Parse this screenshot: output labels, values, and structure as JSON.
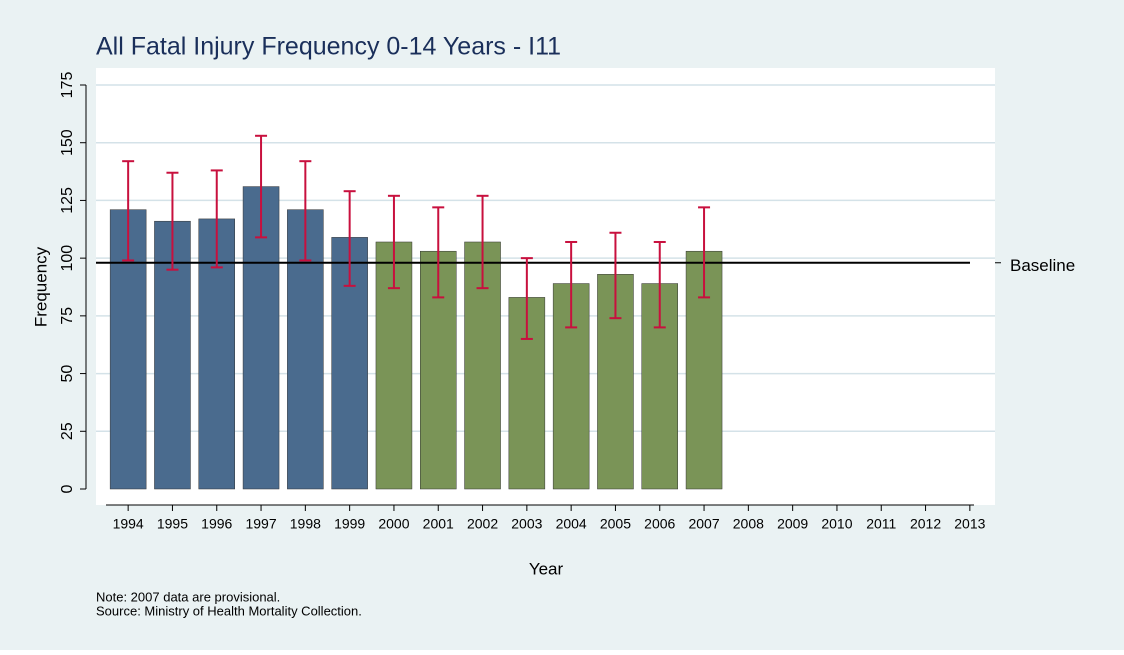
{
  "chart_data": {
    "type": "bar",
    "title": "All Fatal Injury Frequency 0-14 Years - I11",
    "y_label": "Frequency",
    "x_label": "Year",
    "notes": [
      "Note: 2007 data are provisional.",
      "Source: Ministry of Health Mortality Collection."
    ],
    "categories": [
      "1994",
      "1995",
      "1996",
      "1997",
      "1998",
      "1999",
      "2000",
      "2001",
      "2002",
      "2003",
      "2004",
      "2005",
      "2006",
      "2007",
      "2008",
      "2009",
      "2010",
      "2011",
      "2012",
      "2013"
    ],
    "values": [
      121,
      116,
      117,
      131,
      121,
      109,
      107,
      103,
      107,
      83,
      89,
      93,
      89,
      103,
      null,
      null,
      null,
      null,
      null,
      null
    ],
    "error_low": [
      99,
      95,
      96,
      109,
      99,
      88,
      87,
      83,
      87,
      65,
      70,
      74,
      70,
      83,
      null,
      null,
      null,
      null,
      null,
      null
    ],
    "error_high": [
      142,
      137,
      138,
      153,
      142,
      129,
      127,
      122,
      127,
      100,
      107,
      111,
      107,
      122,
      null,
      null,
      null,
      null,
      null,
      null
    ],
    "colors": [
      "#4a6b8e",
      "#4a6b8e",
      "#4a6b8e",
      "#4a6b8e",
      "#4a6b8e",
      "#4a6b8e",
      "#7a9457",
      "#7a9457",
      "#7a9457",
      "#7a9457",
      "#7a9457",
      "#7a9457",
      "#7a9457",
      "#7a9457",
      null,
      null,
      null,
      null,
      null,
      null
    ],
    "error_color": "#c8103e",
    "baseline": {
      "value": 98,
      "label": "Baseline",
      "color": "#000000"
    },
    "ylim": [
      0,
      175
    ],
    "yticks": [
      0,
      25,
      50,
      75,
      100,
      125,
      150,
      175
    ],
    "grid": true
  }
}
